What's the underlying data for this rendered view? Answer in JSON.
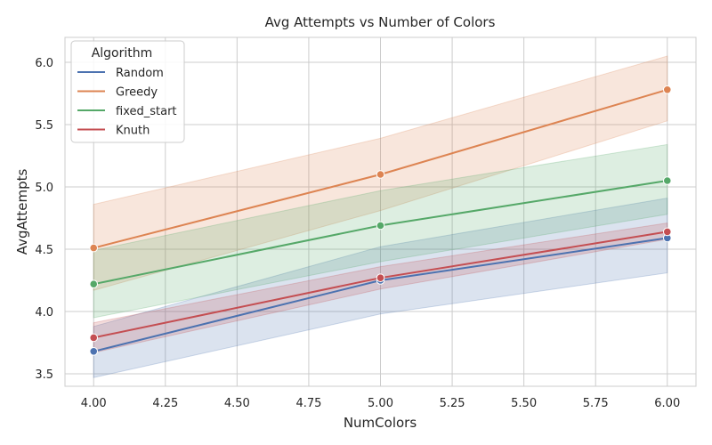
{
  "chart_data": {
    "type": "line",
    "title": "Avg Attempts vs Number of Colors",
    "xlabel": "NumColors",
    "ylabel": "AvgAttempts",
    "x": [
      4.0,
      5.0,
      6.0
    ],
    "xlim": [
      3.9,
      6.1
    ],
    "ylim": [
      3.4,
      6.2
    ],
    "xticks": [
      "4.00",
      "4.25",
      "4.50",
      "4.75",
      "5.00",
      "5.25",
      "5.50",
      "5.75",
      "6.00"
    ],
    "xtick_values": [
      4.0,
      4.25,
      4.5,
      4.75,
      5.0,
      5.25,
      5.5,
      5.75,
      6.0
    ],
    "yticks": [
      "3.5",
      "4.0",
      "4.5",
      "5.0",
      "5.5",
      "6.0"
    ],
    "ytick_values": [
      3.5,
      4.0,
      4.5,
      5.0,
      5.5,
      6.0
    ],
    "grid": true,
    "legend": {
      "title": "Algorithm",
      "placement": "top-left"
    },
    "series": [
      {
        "name": "Random",
        "color": "#4c72b0",
        "values": [
          3.68,
          4.25,
          4.59
        ],
        "ci_low": [
          3.47,
          3.98,
          4.31
        ],
        "ci_high": [
          3.88,
          4.52,
          4.91
        ]
      },
      {
        "name": "Greedy",
        "color": "#dd8452",
        "values": [
          4.51,
          5.1,
          5.78
        ],
        "ci_low": [
          4.17,
          4.81,
          5.53
        ],
        "ci_high": [
          4.86,
          5.39,
          6.05
        ]
      },
      {
        "name": "fixed_start",
        "color": "#55a868",
        "values": [
          4.22,
          4.69,
          5.05
        ],
        "ci_low": [
          3.95,
          4.4,
          4.78
        ],
        "ci_high": [
          4.49,
          4.97,
          5.34
        ]
      },
      {
        "name": "Knuth",
        "color": "#c44e52",
        "values": [
          3.79,
          4.27,
          4.64
        ],
        "ci_low": [
          3.67,
          4.18,
          4.58
        ],
        "ci_high": [
          3.91,
          4.36,
          4.71
        ]
      }
    ]
  }
}
